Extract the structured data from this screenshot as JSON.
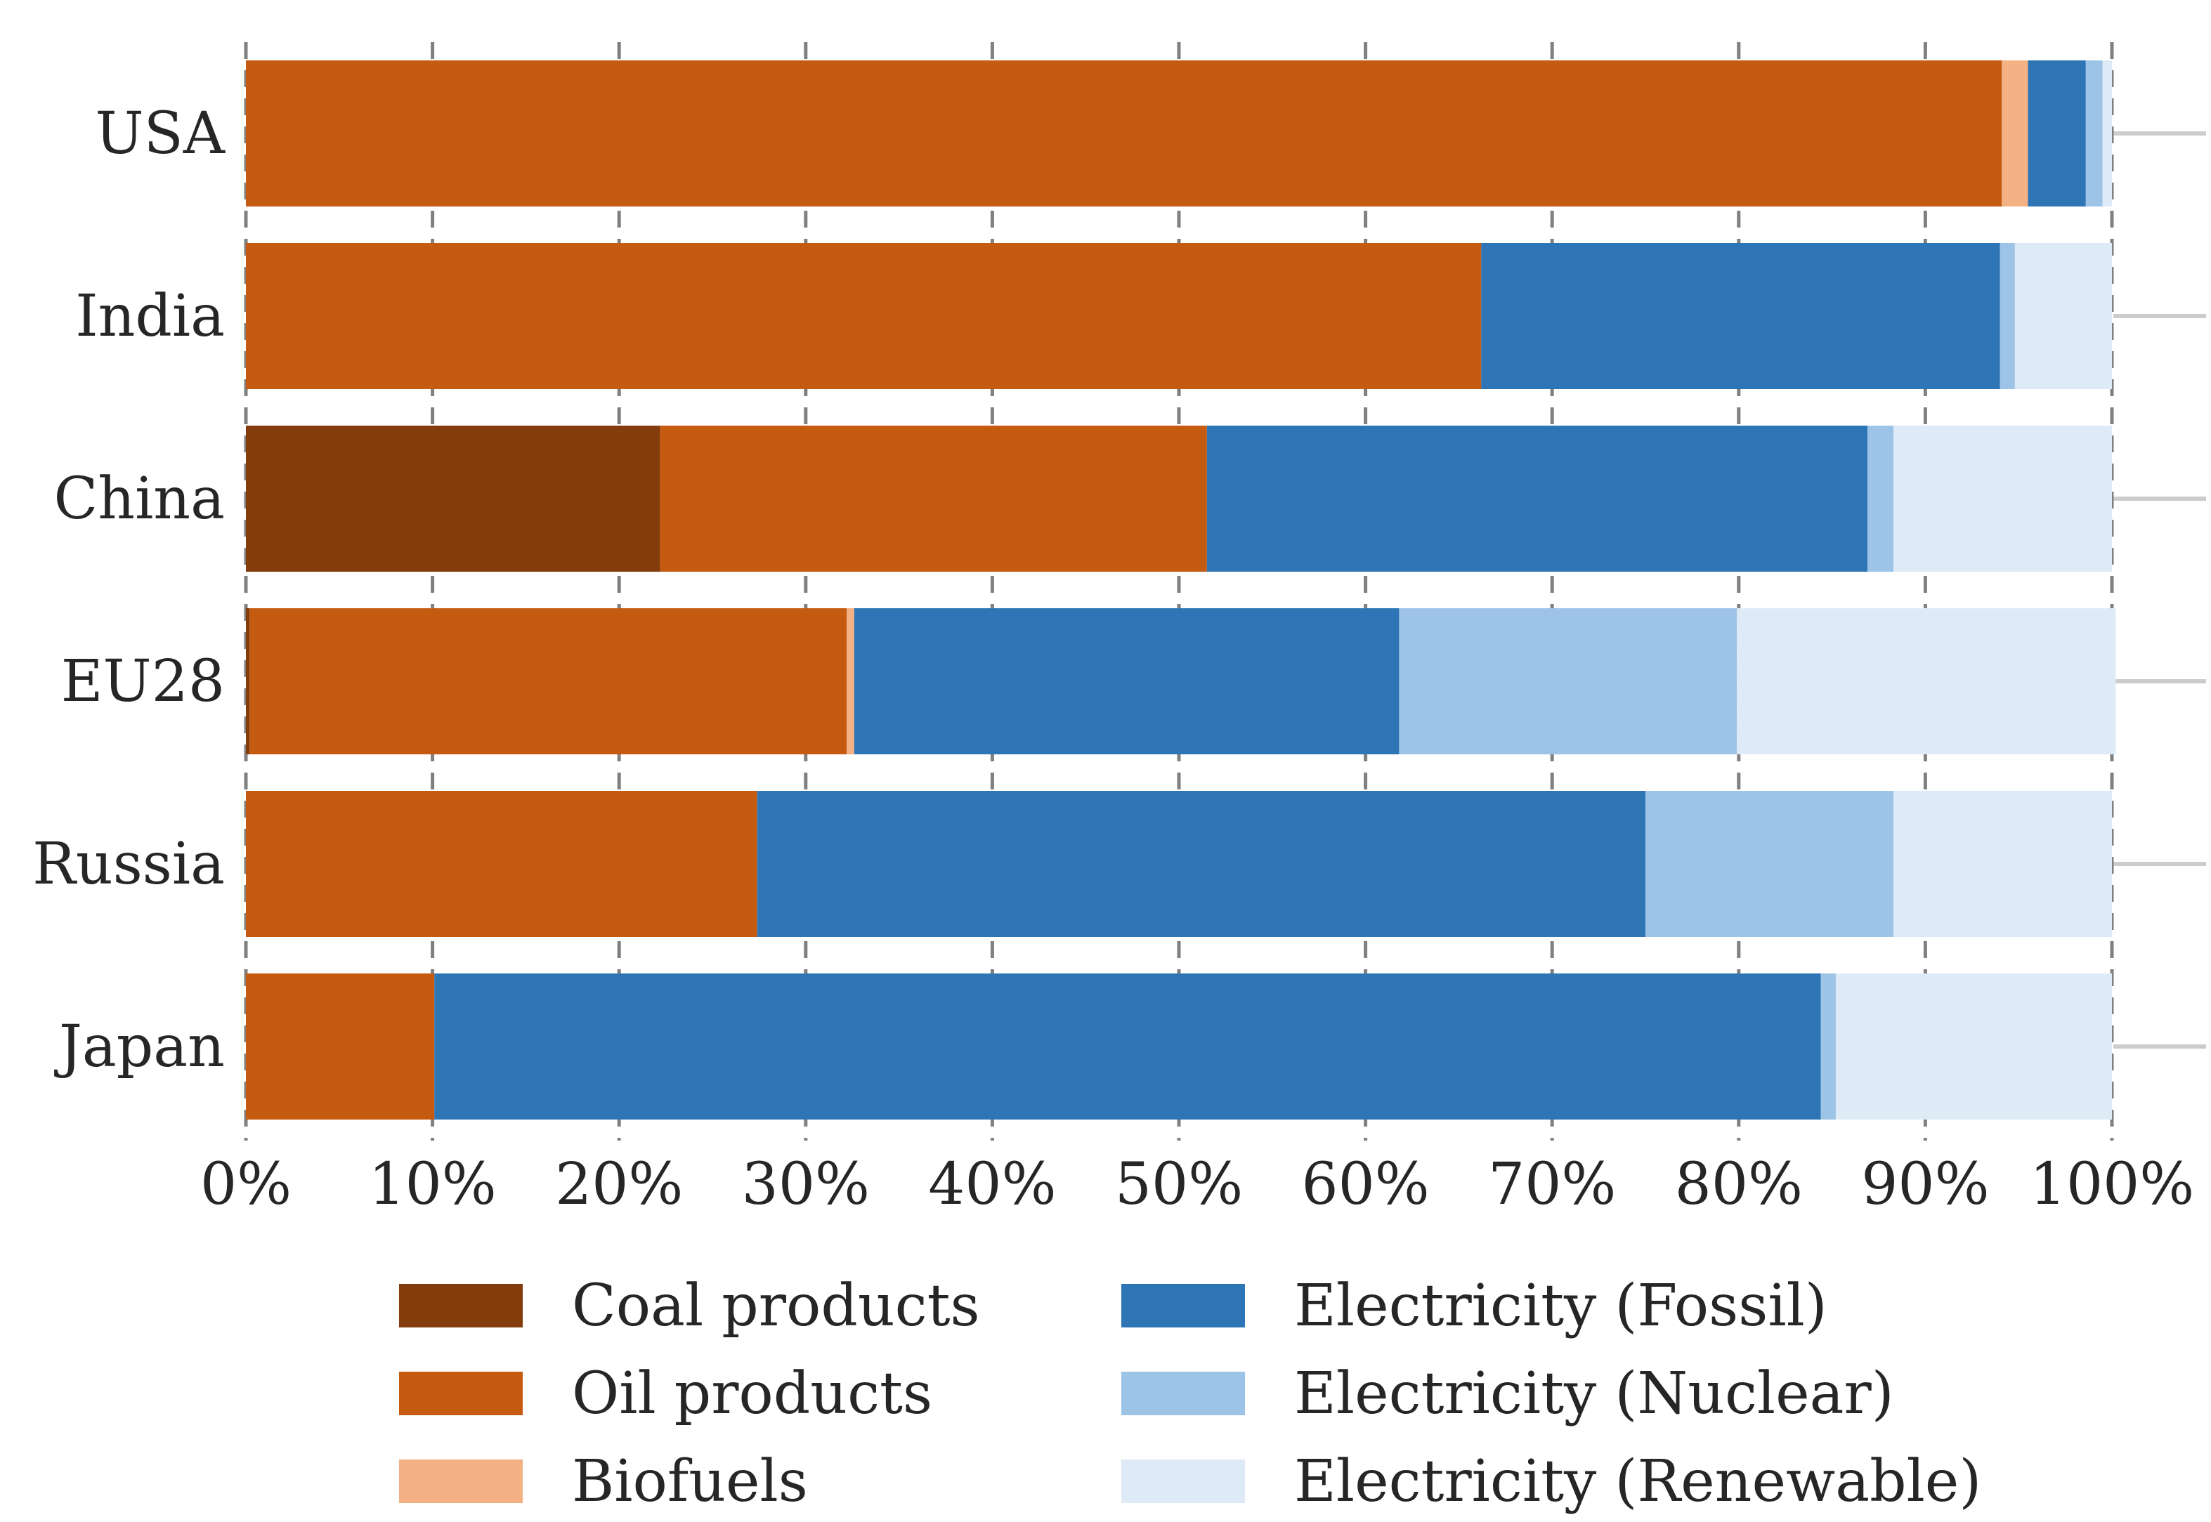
{
  "chart_data": {
    "type": "bar",
    "orientation": "horizontal",
    "stacked": true,
    "normalized_percent": true,
    "title": "",
    "xlabel": "",
    "ylabel": "",
    "xlim": [
      0,
      100
    ],
    "x_tick_labels": [
      "0%",
      "10%",
      "20%",
      "30%",
      "40%",
      "50%",
      "60%",
      "70%",
      "80%",
      "90%",
      "100%"
    ],
    "x_ticks": [
      0,
      10,
      20,
      30,
      40,
      50,
      60,
      70,
      80,
      90,
      100
    ],
    "grid": "vertical dashed",
    "legend_position": "bottom",
    "categories": [
      "USA",
      "India",
      "China",
      "EU28",
      "Russia",
      "Japan"
    ],
    "series": [
      {
        "name": "Coal products",
        "color": "#843C0C",
        "values": [
          0,
          0,
          22.2,
          0.2,
          0,
          0
        ]
      },
      {
        "name": "Oil products",
        "color": "#C55A11",
        "values": [
          94.1,
          66.2,
          29.3,
          32.0,
          27.4,
          10.1
        ]
      },
      {
        "name": "Biofuels",
        "color": "#F4B183",
        "values": [
          1.4,
          0,
          0,
          0.4,
          0,
          0
        ]
      },
      {
        "name": "Electricity (Fossil)",
        "color": "#2E75B6",
        "values": [
          3.1,
          27.8,
          35.4,
          29.2,
          47.6,
          74.3
        ]
      },
      {
        "name": "Electricity (Nuclear)",
        "color": "#9DC3E6",
        "values": [
          0.9,
          0.8,
          1.4,
          18.1,
          13.3,
          0.8
        ]
      },
      {
        "name": "Electricity (Renewable)",
        "color": "#DEEBF7",
        "values": [
          0.5,
          5.2,
          11.7,
          20.3,
          11.7,
          14.8
        ]
      }
    ]
  }
}
